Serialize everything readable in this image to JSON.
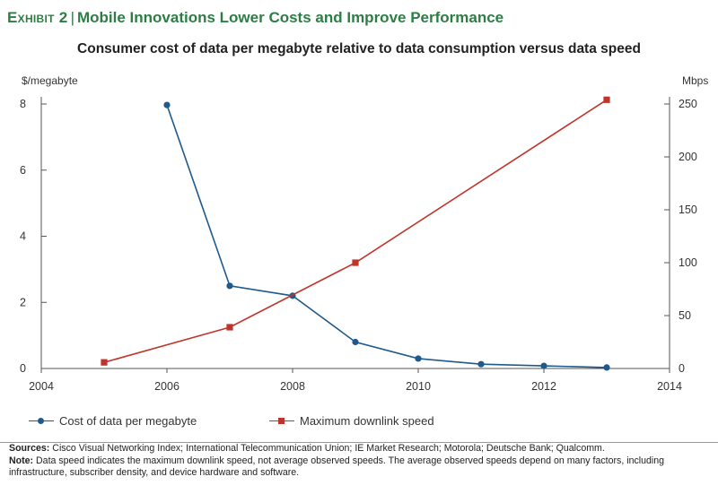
{
  "header": {
    "exhibit_label": "Exhibit 2",
    "separator": "|",
    "title": "Mobile Innovations Lower Costs and Improve Performance",
    "subtitle": "Consumer cost of data per megabyte relative to data consumption versus data speed"
  },
  "colors": {
    "title_green": "#2e7d45",
    "cost_series": "#1f5a8c",
    "speed_series": "#c0352b",
    "axis": "#555555"
  },
  "chart_data": {
    "type": "line",
    "title": "Consumer cost of data per megabyte relative to data consumption versus data speed",
    "xlabel": "",
    "ylabel_left": "$/megabyte",
    "ylabel_right": "Mbps",
    "xlim": [
      2004,
      2014
    ],
    "ylim_left": [
      0,
      8
    ],
    "ylim_right": [
      0,
      250
    ],
    "x_ticks": [
      "2004",
      "2006",
      "2008",
      "2010",
      "2012",
      "2014"
    ],
    "y_ticks_left": [
      "0",
      "2",
      "4",
      "6",
      "8"
    ],
    "y_ticks_right": [
      "0",
      "50",
      "100",
      "150",
      "200",
      "250"
    ],
    "grid": false,
    "series": [
      {
        "name": "Cost of data per megabyte",
        "axis": "left",
        "marker": "circle",
        "x": [
          2006,
          2007,
          2008,
          2009,
          2010,
          2011,
          2012,
          2013
        ],
        "values": [
          7.97,
          2.5,
          2.2,
          0.8,
          0.3,
          0.13,
          0.08,
          0.03
        ]
      },
      {
        "name": "Maximum downlink speed",
        "axis": "right",
        "marker": "square",
        "x": [
          2005,
          2007,
          2009,
          2013
        ],
        "values": [
          5.8,
          39,
          100,
          254
        ]
      }
    ]
  },
  "legend": {
    "cost": "Cost of data per megabyte",
    "speed": "Maximum downlink speed"
  },
  "footer": {
    "sources_label": "Sources:",
    "sources_text": "Cisco Visual Networking Index; International Telecommunication Union; IE Market Research; Motorola; Deutsche Bank; Qualcomm.",
    "note_label": "Note:",
    "note_text": "Data speed indicates the maximum downlink speed, not average observed speeds. The average observed speeds depend on many factors, including infrastructure, subscriber density, and device hardware and software."
  }
}
